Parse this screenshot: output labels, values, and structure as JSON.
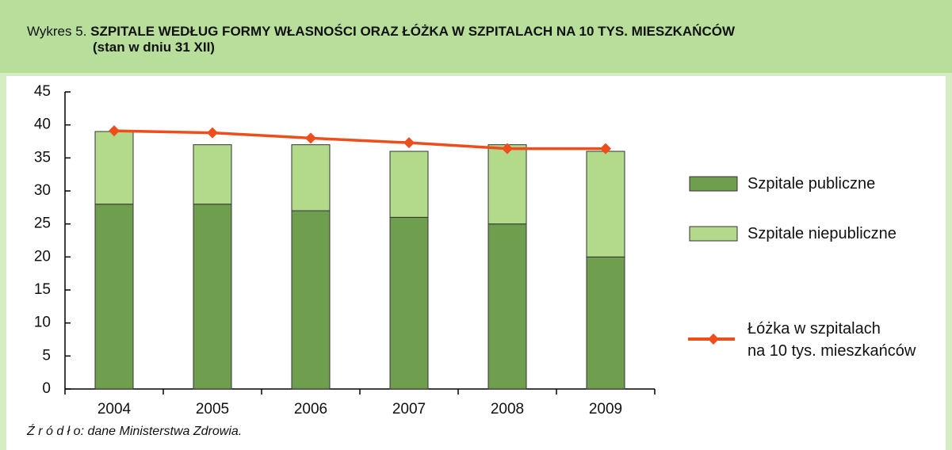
{
  "chart_data": {
    "type": "bar",
    "stacked": true,
    "title_prefix": "Wykres 5.",
    "title": "SZPITALE WEDŁUG FORMY WŁASNOŚCI ORAZ  ŁÓŻKA W SZPITALACH NA 10 TYS. MIESZKAŃCÓW",
    "subtitle": "(stan w dniu 31 XII)",
    "source": "Ź r ó d ł o: dane Ministerstwa Zdrowia.",
    "categories": [
      "2004",
      "2005",
      "2006",
      "2007",
      "2008",
      "2009"
    ],
    "series": [
      {
        "name": "Szpitale publiczne",
        "type": "bar",
        "color": "#6f9e4f",
        "values": [
          28,
          28,
          27,
          26,
          25,
          20
        ]
      },
      {
        "name": "Szpitale niepubliczne",
        "type": "bar",
        "color": "#b3d98a",
        "values": [
          11,
          9,
          10,
          10,
          12,
          16
        ]
      },
      {
        "name": "Łóżka w szpitalach\nna 10 tys. mieszkańców",
        "type": "line",
        "color": "#ee4d1c",
        "values": [
          39.1,
          38.8,
          38.0,
          37.3,
          36.4,
          36.4
        ]
      }
    ],
    "ylim": [
      0,
      45
    ],
    "yticks": [
      0,
      5,
      10,
      15,
      20,
      25,
      30,
      35,
      40,
      45
    ],
    "grid": false,
    "legend": "right"
  }
}
